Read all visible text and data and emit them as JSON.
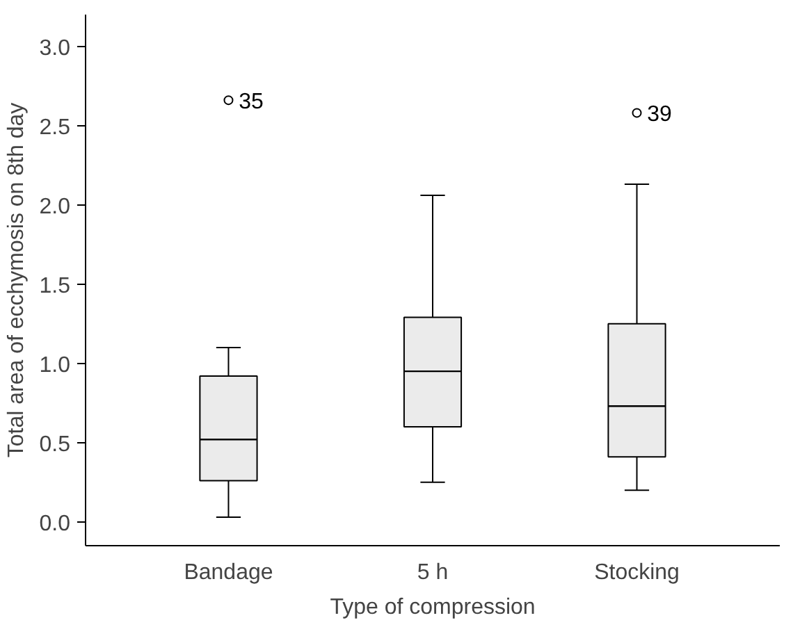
{
  "chart_data": {
    "type": "box",
    "xlabel": "Type of compression",
    "ylabel": "Total area of ecchymosis on 8th day",
    "categories": [
      "Bandage",
      "5 h",
      "Stocking"
    ],
    "boxes": [
      {
        "low": 0.03,
        "q1": 0.26,
        "median": 0.52,
        "q3": 0.92,
        "high": 1.1,
        "outliers": [
          2.66
        ]
      },
      {
        "low": 0.25,
        "q1": 0.6,
        "median": 0.95,
        "q3": 1.29,
        "high": 2.06
      },
      {
        "low": 0.2,
        "q1": 0.41,
        "median": 0.73,
        "q3": 1.25,
        "high": 2.13,
        "outliers": [
          2.58
        ]
      }
    ],
    "color": "#ebebeb",
    "ylim": [
      -0.15,
      3.2
    ],
    "yticks": [
      {
        "value": 0,
        "label": "0.0"
      },
      {
        "value": 0.5,
        "label": "0.5"
      },
      {
        "value": 1,
        "label": "1.0"
      },
      {
        "value": 1.5,
        "label": "1.5"
      },
      {
        "value": 2,
        "label": "2.0"
      },
      {
        "value": 2.5,
        "label": "2.5"
      },
      {
        "value": 3,
        "label": "3.0"
      }
    ],
    "grid": false,
    "annotations": [
      "35",
      "39"
    ]
  }
}
